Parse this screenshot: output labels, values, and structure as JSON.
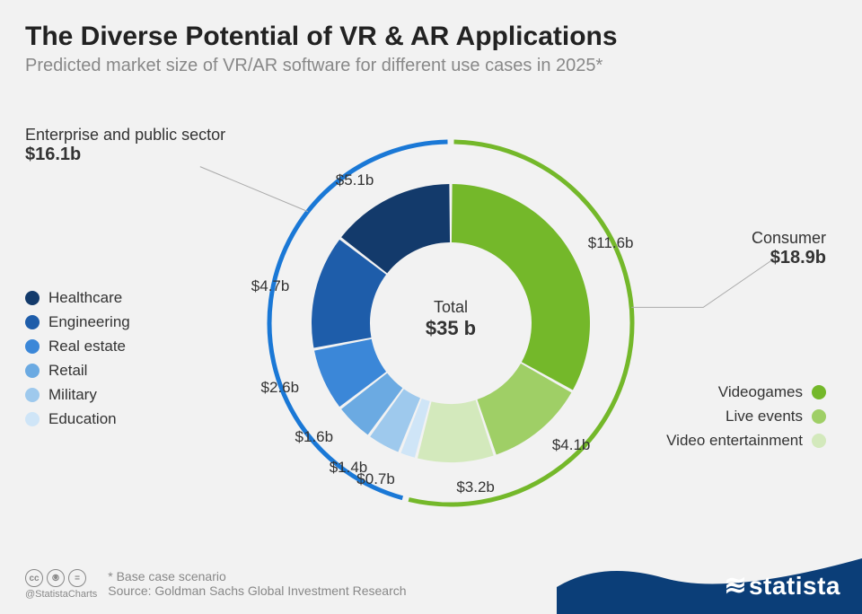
{
  "header": {
    "title": "The Diverse Potential of VR & AR Applications",
    "subtitle": "Predicted market size of VR/AR software for different use cases in 2025*"
  },
  "chart": {
    "type": "donut",
    "center_label": "Total",
    "center_value": "$35 b",
    "outer_ring": {
      "stroke_width": 5,
      "radius": 202,
      "sectors": [
        {
          "label": "Consumer",
          "amount": "$18.9b",
          "value": 18.9,
          "color": "#74b82a"
        },
        {
          "label": "Enterprise and public sector",
          "amount": "$16.1b",
          "value": 16.1,
          "color": "#1a78d6"
        }
      ]
    },
    "inner_ring": {
      "inner_radius": 90,
      "outer_radius": 155,
      "gap_deg": 1.2,
      "slices": [
        {
          "key": "videogames",
          "label": "Videogames",
          "value": 11.6,
          "display": "$11.6b",
          "color": "#74b82a"
        },
        {
          "key": "live_events",
          "label": "Live events",
          "value": 4.1,
          "display": "$4.1b",
          "color": "#9fcf66"
        },
        {
          "key": "video_ent",
          "label": "Video entertainment",
          "value": 3.2,
          "display": "$3.2b",
          "color": "#d3e9bc"
        },
        {
          "key": "education",
          "label": "Education",
          "value": 0.7,
          "display": "$0.7b",
          "color": "#cfe5f7"
        },
        {
          "key": "military",
          "label": "Military",
          "value": 1.4,
          "display": "$1.4b",
          "color": "#9ec9ed"
        },
        {
          "key": "retail",
          "label": "Retail",
          "value": 1.6,
          "display": "$1.6b",
          "color": "#6baae2"
        },
        {
          "key": "real_estate",
          "label": "Real estate",
          "value": 2.6,
          "display": "$2.6b",
          "color": "#3b87d8"
        },
        {
          "key": "engineering",
          "label": "Engineering",
          "value": 4.7,
          "display": "$4.7b",
          "color": "#1e5daa"
        },
        {
          "key": "healthcare",
          "label": "Healthcare",
          "value": 5.1,
          "display": "$5.1b",
          "color": "#133a6b"
        }
      ]
    },
    "legends": {
      "left": [
        "healthcare",
        "engineering",
        "real_estate",
        "retail",
        "military",
        "education"
      ],
      "right": [
        "videogames",
        "live_events",
        "video_ent"
      ]
    },
    "background_color": "#f2f2f2"
  },
  "footer": {
    "note": "* Base case scenario",
    "source": "Source: Goldman Sachs Global Investment Research",
    "handle": "@StatistaCharts",
    "brand": "statista",
    "brand_color": "#0b3e78"
  }
}
